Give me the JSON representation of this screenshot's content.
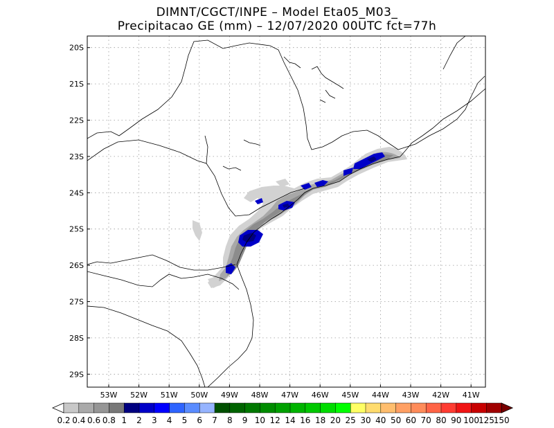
{
  "title": {
    "line1": "DIMNT/CGCT/INPE –  Model Eta05_M03_",
    "line2": "Precipitacao GE (mm) – 12/07/2020 00UTC fct=77h"
  },
  "axes": {
    "lat_labels": [
      "20S",
      "21S",
      "22S",
      "23S",
      "24S",
      "25S",
      "26S",
      "27S",
      "28S",
      "29S"
    ],
    "lon_labels": [
      "53W",
      "52W",
      "51W",
      "50W",
      "49W",
      "48W",
      "47W",
      "46W",
      "45W",
      "44W",
      "43W",
      "42W",
      "41W"
    ],
    "grid": true,
    "lat_range": [
      -29.5,
      -19.5
    ],
    "lon_range": [
      -53.8,
      -40.2
    ]
  },
  "colorbar": {
    "labels": [
      "0.2",
      "0.4",
      "0.6",
      "0.8",
      "1",
      "2",
      "3",
      "4",
      "5",
      "6",
      "7",
      "8",
      "9",
      "10",
      "12",
      "14",
      "16",
      "18",
      "20",
      "25",
      "30",
      "40",
      "50",
      "60",
      "70",
      "80",
      "90",
      "100",
      "125",
      "150"
    ],
    "colors": [
      "#ffffff",
      "#c8c8c8",
      "#aaaaaa",
      "#969696",
      "#787878",
      "#000080",
      "#0000c8",
      "#0000ff",
      "#2e64ff",
      "#5a8cff",
      "#96b4ff",
      "#005000",
      "#006400",
      "#007800",
      "#008c00",
      "#00a000",
      "#00b400",
      "#00c800",
      "#00dc00",
      "#00ff00",
      "#ffff64",
      "#ffdc6e",
      "#ffbe6e",
      "#ffa064",
      "#ff8c5a",
      "#ff6446",
      "#ff3c32",
      "#f01414",
      "#c80000",
      "#a00000",
      "#780000"
    ]
  },
  "map_colors": {
    "light_gray": "#d2d2d2",
    "mid_gray": "#a8a8a8",
    "dark_gray": "#8c8c8c",
    "blue": "#0000c8",
    "navy": "#000080"
  }
}
